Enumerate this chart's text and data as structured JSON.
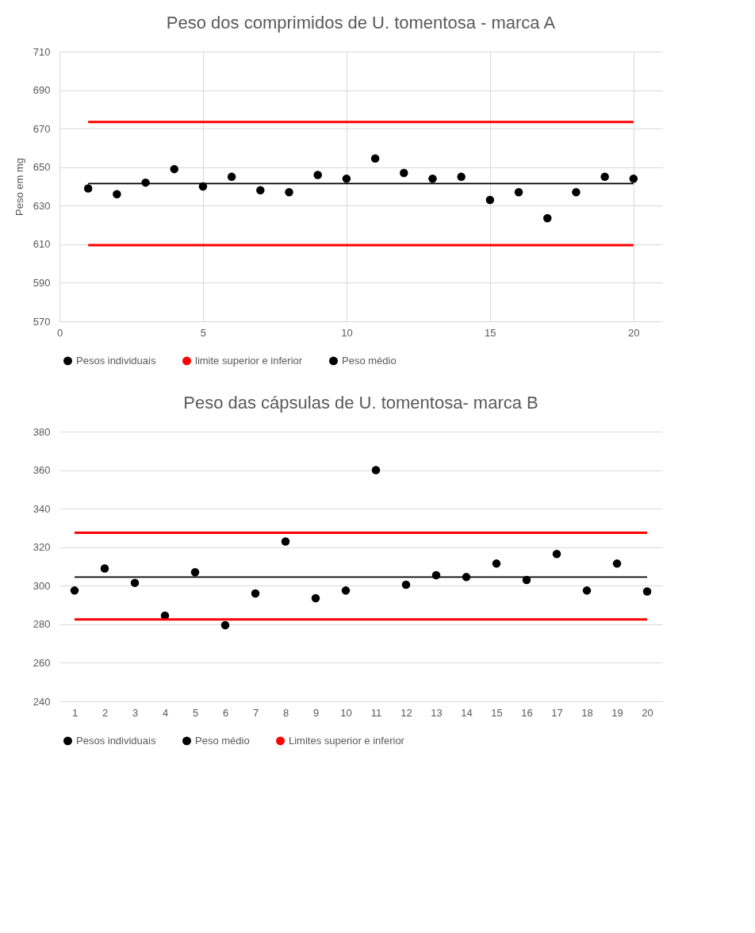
{
  "chart_data": [
    {
      "type": "scatter",
      "title": "Peso dos comprimidos de U. tomentosa - marca A",
      "ylabel": "Peso em mg",
      "x": [
        1,
        2,
        3,
        4,
        5,
        6,
        7,
        8,
        9,
        10,
        11,
        12,
        13,
        14,
        15,
        16,
        17,
        18,
        19,
        20
      ],
      "xlim": [
        0,
        21
      ],
      "xticks": [
        0,
        5,
        10,
        15,
        20
      ],
      "ylim": [
        570,
        710
      ],
      "yticks": [
        570,
        590,
        610,
        630,
        650,
        670,
        690,
        710
      ],
      "grid": true,
      "legend": "bottom",
      "series": [
        {
          "name": "Pesos individuais",
          "marker": "circle",
          "color": "#000000",
          "values": [
            639,
            636,
            642,
            649,
            640,
            645,
            638,
            637,
            646,
            644,
            654.5,
            647,
            644,
            645,
            633,
            637,
            623.5,
            637,
            645,
            644
          ]
        },
        {
          "name": "limite superior e inferior",
          "type": "line",
          "color": "#ff0000",
          "values": [
            673.5,
            673.5,
            673.5,
            673.5,
            673.5,
            673.5,
            673.5,
            673.5,
            673.5,
            673.5,
            673.5,
            673.5,
            673.5,
            673.5,
            673.5,
            673.5,
            673.5,
            673.5,
            673.5,
            673.5
          ]
        },
        {
          "type": "line",
          "color": "#ff0000",
          "values": [
            609.5,
            609.5,
            609.5,
            609.5,
            609.5,
            609.5,
            609.5,
            609.5,
            609.5,
            609.5,
            609.5,
            609.5,
            609.5,
            609.5,
            609.5,
            609.5,
            609.5,
            609.5,
            609.5,
            609.5
          ]
        },
        {
          "name": "Peso médio",
          "type": "line",
          "color": "#000000",
          "values": [
            641.5,
            641.5,
            641.5,
            641.5,
            641.5,
            641.5,
            641.5,
            641.5,
            641.5,
            641.5,
            641.5,
            641.5,
            641.5,
            641.5,
            641.5,
            641.5,
            641.5,
            641.5,
            641.5,
            641.5
          ]
        }
      ]
    },
    {
      "type": "scatter",
      "title": "Peso das cápsulas de U. tomentosa- marca B",
      "x": [
        1,
        2,
        3,
        4,
        5,
        6,
        7,
        8,
        9,
        10,
        11,
        12,
        13,
        14,
        15,
        16,
        17,
        18,
        19,
        20
      ],
      "xlim": [
        0.5,
        20.5
      ],
      "xticks": [
        1,
        2,
        3,
        4,
        5,
        6,
        7,
        8,
        9,
        10,
        11,
        12,
        13,
        14,
        15,
        16,
        17,
        18,
        19,
        20
      ],
      "ylim": [
        240,
        380
      ],
      "yticks": [
        240,
        260,
        280,
        300,
        320,
        340,
        360,
        380
      ],
      "grid": "y",
      "legend": "bottom",
      "series": [
        {
          "name": "Pesos individuais",
          "marker": "circle",
          "color": "#000000",
          "values": [
            297.5,
            309,
            301.5,
            284.5,
            307,
            279.5,
            296,
            323,
            293.5,
            297.5,
            360,
            300.5,
            305.5,
            304.5,
            311.5,
            303,
            316.5,
            297.5,
            311.5,
            297
          ]
        },
        {
          "name": "Peso médio",
          "type": "line",
          "color": "#000000",
          "values": [
            304.5,
            304.5,
            304.5,
            304.5,
            304.5,
            304.5,
            304.5,
            304.5,
            304.5,
            304.5,
            304.5,
            304.5,
            304.5,
            304.5,
            304.5,
            304.5,
            304.5,
            304.5,
            304.5,
            304.5
          ]
        },
        {
          "name": "Limites superior e inferior",
          "type": "line",
          "color": "#ff0000",
          "values": [
            327.5,
            327.5,
            327.5,
            327.5,
            327.5,
            327.5,
            327.5,
            327.5,
            327.5,
            327.5,
            327.5,
            327.5,
            327.5,
            327.5,
            327.5,
            327.5,
            327.5,
            327.5,
            327.5,
            327.5
          ]
        },
        {
          "type": "line",
          "color": "#ff0000",
          "values": [
            282.5,
            282.5,
            282.5,
            282.5,
            282.5,
            282.5,
            282.5,
            282.5,
            282.5,
            282.5,
            282.5,
            282.5,
            282.5,
            282.5,
            282.5,
            282.5,
            282.5,
            282.5,
            282.5,
            282.5
          ]
        }
      ]
    }
  ]
}
